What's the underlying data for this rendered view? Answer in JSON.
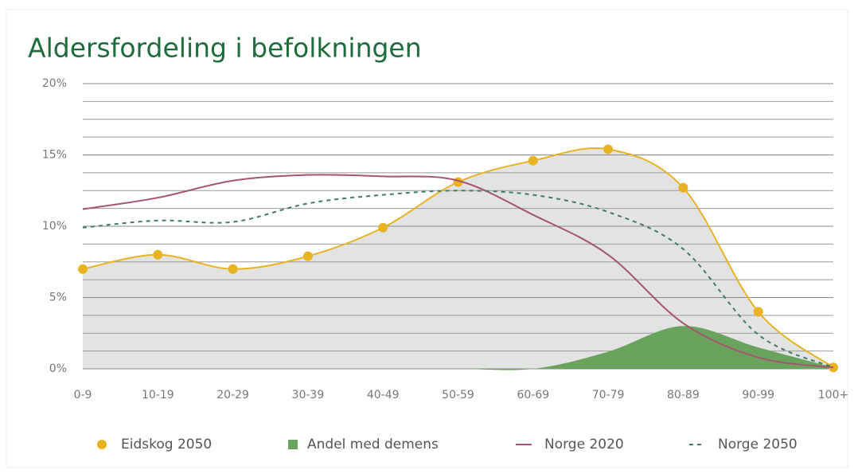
{
  "chart_data": {
    "type": "line",
    "title": "Aldersfordeling i befolkningen",
    "categories": [
      "0-9",
      "10-19",
      "20-29",
      "30-39",
      "40-49",
      "50-59",
      "60-69",
      "70-79",
      "80-89",
      "90-99",
      "100+"
    ],
    "series": [
      {
        "name": "Eidskog 2050",
        "color": "#e8b323",
        "fill": "#e3e3e3",
        "marker": "circle",
        "kind": "line",
        "values": [
          7.0,
          8.0,
          7.0,
          7.9,
          9.9,
          13.1,
          14.6,
          15.4,
          12.7,
          4.0,
          0.1
        ]
      },
      {
        "name": "Andel med demens",
        "color": "#6aa35e",
        "kind": "area",
        "values": [
          0,
          0,
          0,
          0,
          0,
          0,
          0,
          1.2,
          3.0,
          1.5,
          0.1
        ]
      },
      {
        "name": "Norge 2020",
        "color": "#a5556f",
        "kind": "line",
        "values": [
          11.2,
          12.0,
          13.2,
          13.6,
          13.5,
          13.2,
          10.8,
          8.0,
          3.2,
          0.8,
          0.1
        ]
      },
      {
        "name": "Norge 2050",
        "color": "#3f7d5c",
        "kind": "line",
        "dash": true,
        "values": [
          9.9,
          10.4,
          10.3,
          11.6,
          12.2,
          12.5,
          12.2,
          11.0,
          8.4,
          2.4,
          0.1
        ]
      }
    ],
    "ylim": [
      0,
      20
    ],
    "yticks": [
      {
        "value": 0,
        "label": "0%"
      },
      {
        "value": 5,
        "label": "5%"
      },
      {
        "value": 10,
        "label": "10%"
      },
      {
        "value": 15,
        "label": "15%"
      },
      {
        "value": 20,
        "label": "20%"
      }
    ],
    "minor_yticks": [
      1.25,
      2.5,
      3.75,
      6.25,
      7.5,
      8.75,
      11.25,
      12.5,
      13.75,
      16.25,
      17.5,
      18.75
    ],
    "grid": true,
    "legend": "bottom"
  }
}
